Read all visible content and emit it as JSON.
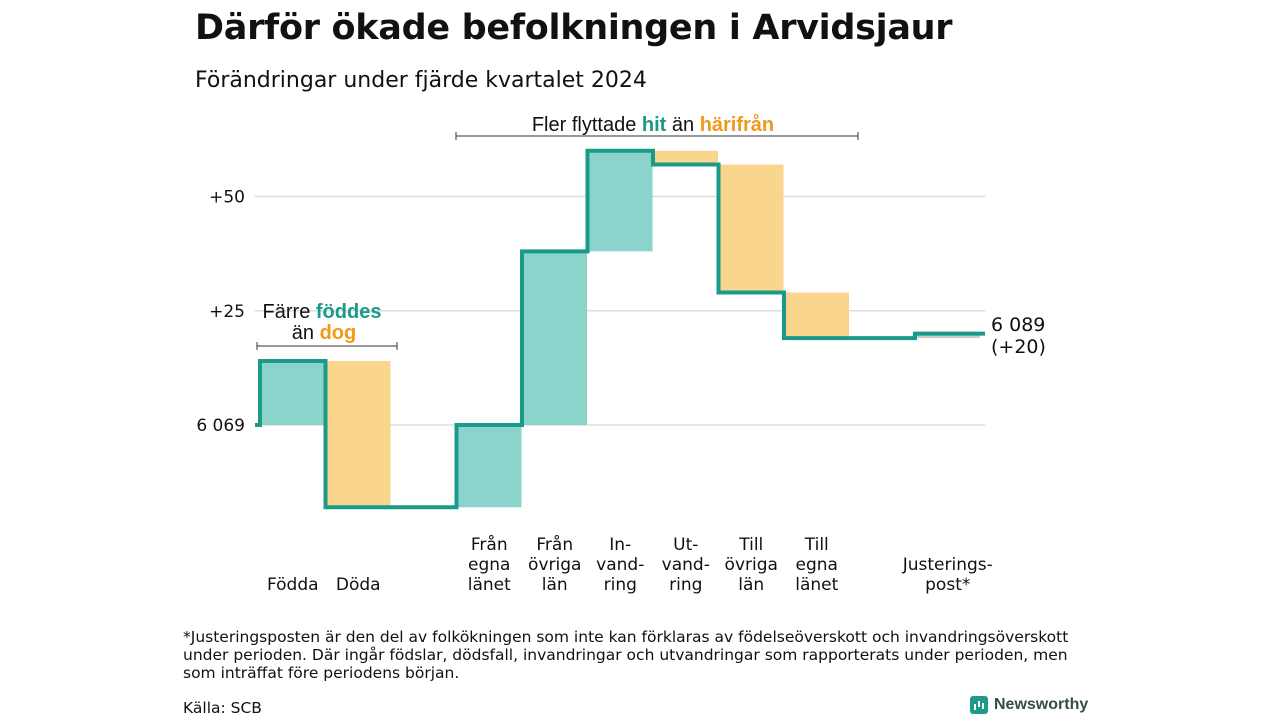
{
  "title": "Därför ökade befolkningen i Arvidsjaur",
  "subtitle": "Förändringar under fjärde kvartalet 2024",
  "colors": {
    "increase": "#8bd4cb",
    "decrease": "#f9d58e",
    "line": "#1a9a88",
    "grid": "#dddddd",
    "adjustment": "#cccccc",
    "teal_text": "#1a9a88",
    "orange_text": "#f09a1a"
  },
  "annotations": {
    "births": {
      "line1_plain": "Färre",
      "line1_hl": "föddes",
      "line2_plain": "än",
      "line2_hl": "dog"
    },
    "migration": {
      "plain1": "Fler flyttade",
      "hl1": "hit",
      "plain2": "än",
      "hl2": "härifrån"
    }
  },
  "end_label": {
    "value": "6 089",
    "change": "(+20)"
  },
  "footnote": "*Justeringsposten är den del av folkökningen som inte kan förklaras av födelseöverskott och invandringsöverskott under perioden. Där ingår födslar, dödsfall, invandringar och utvandringar som rapporterats under perioden, men som inträffat före periodens början.",
  "source": "Källa: SCB",
  "brand": "Newsworthy",
  "chart_data": {
    "type": "waterfall",
    "start_value": 6069,
    "end_value": 6089,
    "y_ticks": [
      {
        "offset": 0,
        "label": "6 069"
      },
      {
        "offset": 25,
        "label": "+25"
      },
      {
        "offset": 50,
        "label": "+50"
      }
    ],
    "categories": [
      {
        "label": "Födda",
        "lines": [
          "Födda"
        ],
        "change": 14
      },
      {
        "label": "Döda",
        "lines": [
          "Döda"
        ],
        "change": -32
      },
      {
        "label": "",
        "lines": [],
        "change": 0
      },
      {
        "label": "Från egna länet",
        "lines": [
          "Från",
          "egna",
          "länet"
        ],
        "change": 18
      },
      {
        "label": "Från övriga län",
        "lines": [
          "Från",
          "övriga",
          "län"
        ],
        "change": 38
      },
      {
        "label": "In-vandring",
        "lines": [
          "In-",
          "vand-",
          "ring"
        ],
        "change": 22
      },
      {
        "label": "Ut-vandring",
        "lines": [
          "Ut-",
          "vand-",
          "ring"
        ],
        "change": -3
      },
      {
        "label": "Till övriga län",
        "lines": [
          "Till",
          "övriga",
          "län"
        ],
        "change": -28
      },
      {
        "label": "Till egna länet",
        "lines": [
          "Till",
          "egna",
          "länet"
        ],
        "change": -10
      },
      {
        "label": "",
        "lines": [],
        "change": 0
      },
      {
        "label": "Justerings-post*",
        "lines": [
          "Justerings-",
          "post*"
        ],
        "change": 1
      }
    ]
  }
}
